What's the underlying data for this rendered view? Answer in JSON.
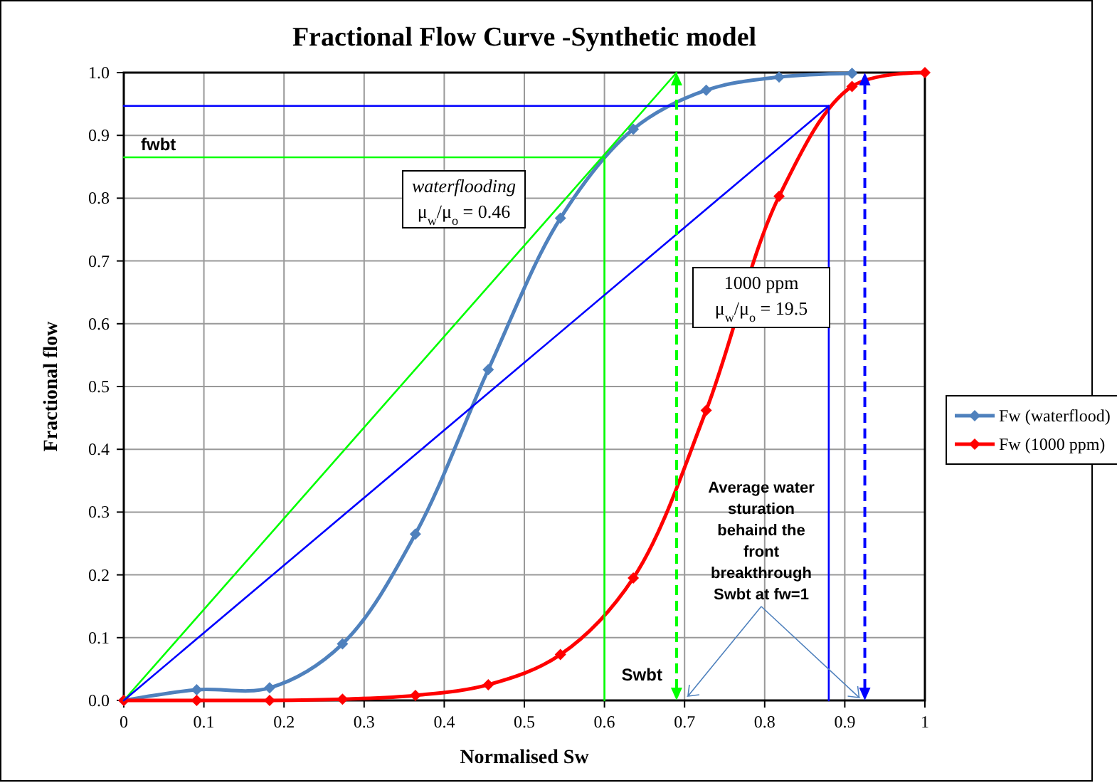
{
  "chart_data": {
    "type": "line",
    "title": "Fractional Flow Curve -Synthetic model",
    "xlabel": "Normalised Sw",
    "ylabel": "Fractional flow",
    "xlim": [
      0,
      1
    ],
    "ylim": [
      0,
      1
    ],
    "xticks": [
      0,
      0.1,
      0.2,
      0.3,
      0.4,
      0.5,
      0.6,
      0.7,
      0.8,
      0.9,
      1
    ],
    "yticks": [
      {
        "value": 0,
        "label": "0.0"
      },
      0.1,
      0.2,
      0.3,
      0.4,
      0.5,
      0.6,
      0.7,
      0.8,
      0.9,
      {
        "value": 1,
        "label": "1.0"
      }
    ],
    "grid": true,
    "legend": "right",
    "series": [
      {
        "name": "Fw (waterflood)",
        "color": "#4f81bd",
        "marker": "diamond",
        "x": [
          0,
          0.091,
          0.182,
          0.273,
          0.364,
          0.455,
          0.545,
          0.636,
          0.727,
          0.818,
          0.909
        ],
        "values": [
          0,
          0.017,
          0.02,
          0.09,
          0.265,
          0.527,
          0.768,
          0.91,
          0.972,
          0.993,
          0.999
        ]
      },
      {
        "name": "Fw (1000 ppm)",
        "color": "#ff0000",
        "marker": "diamond",
        "x": [
          0,
          0.091,
          0.182,
          0.273,
          0.364,
          0.455,
          0.545,
          0.636,
          0.727,
          0.818,
          0.909,
          1
        ],
        "values": [
          0,
          0,
          0,
          0.002,
          0.008,
          0.025,
          0.073,
          0.195,
          0.462,
          0.803,
          0.978,
          1
        ]
      },
      {
        "color": "#00ff00",
        "marker": "none",
        "x": [
          0,
          0.69
        ],
        "values": [
          0,
          1
        ]
      },
      {
        "color": "#00ff00",
        "marker": "none",
        "x": [
          0,
          0.6,
          0.6
        ],
        "values": [
          0.865,
          0.865,
          0
        ]
      },
      {
        "color": "#0000ff",
        "marker": "none",
        "x": [
          0,
          0.88
        ],
        "values": [
          0,
          0.947
        ]
      },
      {
        "color": "#0000ff",
        "marker": "none",
        "x": [
          0,
          0.88,
          0.88
        ],
        "values": [
          0.947,
          0.947,
          0
        ]
      }
    ],
    "ref_lines": [
      {
        "axis": "x",
        "value": 0.69,
        "color": "#00ff00",
        "line_style": "dashed"
      },
      {
        "axis": "x",
        "value": 0.925,
        "color": "#0000ff",
        "line_style": "dashed"
      }
    ],
    "annotations": [
      {
        "text": "fwbt",
        "x": 0,
        "y": 0.865
      },
      {
        "text": "Swbt",
        "x": 0.6,
        "y": 0
      },
      "waterflooding\nμ$_{w}$/μ$_{o}$ = 0.46",
      "1000  ppm\nμ$_{w}$/μ$_{o}$ = 19.5",
      "Average water\nsturation\nbehaind the\nfront\nbreakthrough\nSwbt at fw=1"
    ]
  }
}
